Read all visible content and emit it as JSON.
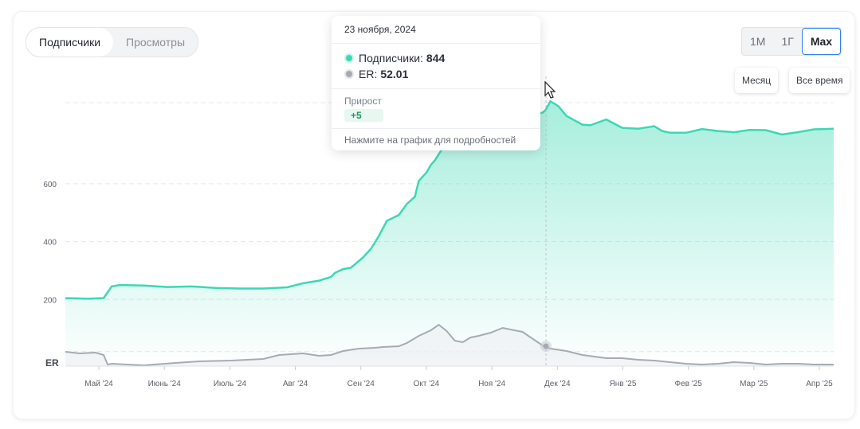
{
  "tabs": [
    {
      "label": "Подписчики",
      "active": true
    },
    {
      "label": "Просмотры",
      "active": false
    }
  ],
  "ranges": [
    {
      "label": "1M",
      "selected": false
    },
    {
      "label": "1Г",
      "selected": false
    },
    {
      "label": "Max",
      "selected": true
    }
  ],
  "hints": {
    "month": "Месяц",
    "all_time": "Все время"
  },
  "tooltip": {
    "date": "23 ноября, 2024",
    "subscribers_label": "Подписчики:",
    "subscribers_value": "844",
    "er_label": "ER:",
    "er_value": "52.01",
    "growth_label": "Прирост",
    "growth_value": "+5",
    "footer": "Нажмите на график для подробностей"
  },
  "colors": {
    "subscribers": "#3ad9b4",
    "er": "#a6abb3",
    "accent": "#2f80ed"
  },
  "chart_data": {
    "type": "area",
    "series_label": "Подписчики",
    "y_ticks": [
      "600",
      "400",
      "200"
    ],
    "ylim": [
      0,
      880
    ],
    "x_ticks": [
      "Май '24",
      "Июнь '24",
      "Июль '24",
      "Авг '24",
      "Сен '24",
      "Окт '24",
      "Ноя '24",
      "Дек '24",
      "Янв '25",
      "Фев '25",
      "Мар '25",
      "Апр '25"
    ],
    "subscribers": {
      "x": [
        0,
        28,
        48,
        58,
        68,
        98,
        128,
        158,
        188,
        218,
        248,
        278,
        298,
        318,
        333,
        338,
        348,
        358,
        373,
        383,
        393,
        403,
        418,
        428,
        438,
        443,
        448,
        453,
        458,
        463,
        468,
        473,
        478,
        488,
        498,
        508,
        513,
        523,
        533,
        543,
        553,
        563,
        573,
        583,
        593,
        598,
        602,
        608,
        618,
        628,
        648,
        658,
        678,
        698,
        718,
        738,
        748,
        758,
        778,
        798,
        818,
        838,
        858,
        878,
        898,
        918,
        938,
        963
      ],
      "y": [
        205,
        203,
        205,
        245,
        250,
        248,
        243,
        245,
        240,
        238,
        238,
        242,
        256,
        265,
        278,
        292,
        305,
        310,
        345,
        375,
        420,
        472,
        492,
        530,
        555,
        610,
        625,
        640,
        665,
        680,
        702,
        723,
        742,
        760,
        788,
        812,
        818,
        832,
        835,
        838,
        842,
        842,
        843,
        843,
        844,
        845,
        855,
        885,
        868,
        834,
        804,
        802,
        822,
        793,
        790,
        799,
        782,
        776,
        776,
        789,
        782,
        778,
        786,
        785,
        770,
        778,
        788,
        790
      ]
    },
    "er": {
      "label": "ER",
      "x": [
        0,
        18,
        38,
        48,
        53,
        58,
        98,
        138,
        168,
        208,
        248,
        268,
        298,
        318,
        333,
        348,
        368,
        388,
        398,
        418,
        428,
        443,
        458,
        468,
        478,
        488,
        498,
        508,
        518,
        533,
        548,
        573,
        598,
        608,
        628,
        648,
        678,
        698,
        718,
        738,
        758,
        778,
        798,
        818,
        838,
        858,
        878,
        898,
        918,
        938,
        963
      ],
      "y": [
        18,
        16,
        17,
        14,
        2,
        3,
        1,
        4,
        6,
        7,
        9,
        14,
        16,
        13,
        14,
        19,
        22,
        23,
        24,
        25,
        29,
        38,
        45,
        52,
        44,
        32,
        30,
        36,
        38,
        42,
        48,
        43,
        26,
        22,
        19,
        14,
        10,
        10,
        8,
        7,
        5,
        3,
        2,
        3,
        5,
        4,
        2,
        3,
        3,
        2,
        2
      ]
    }
  }
}
